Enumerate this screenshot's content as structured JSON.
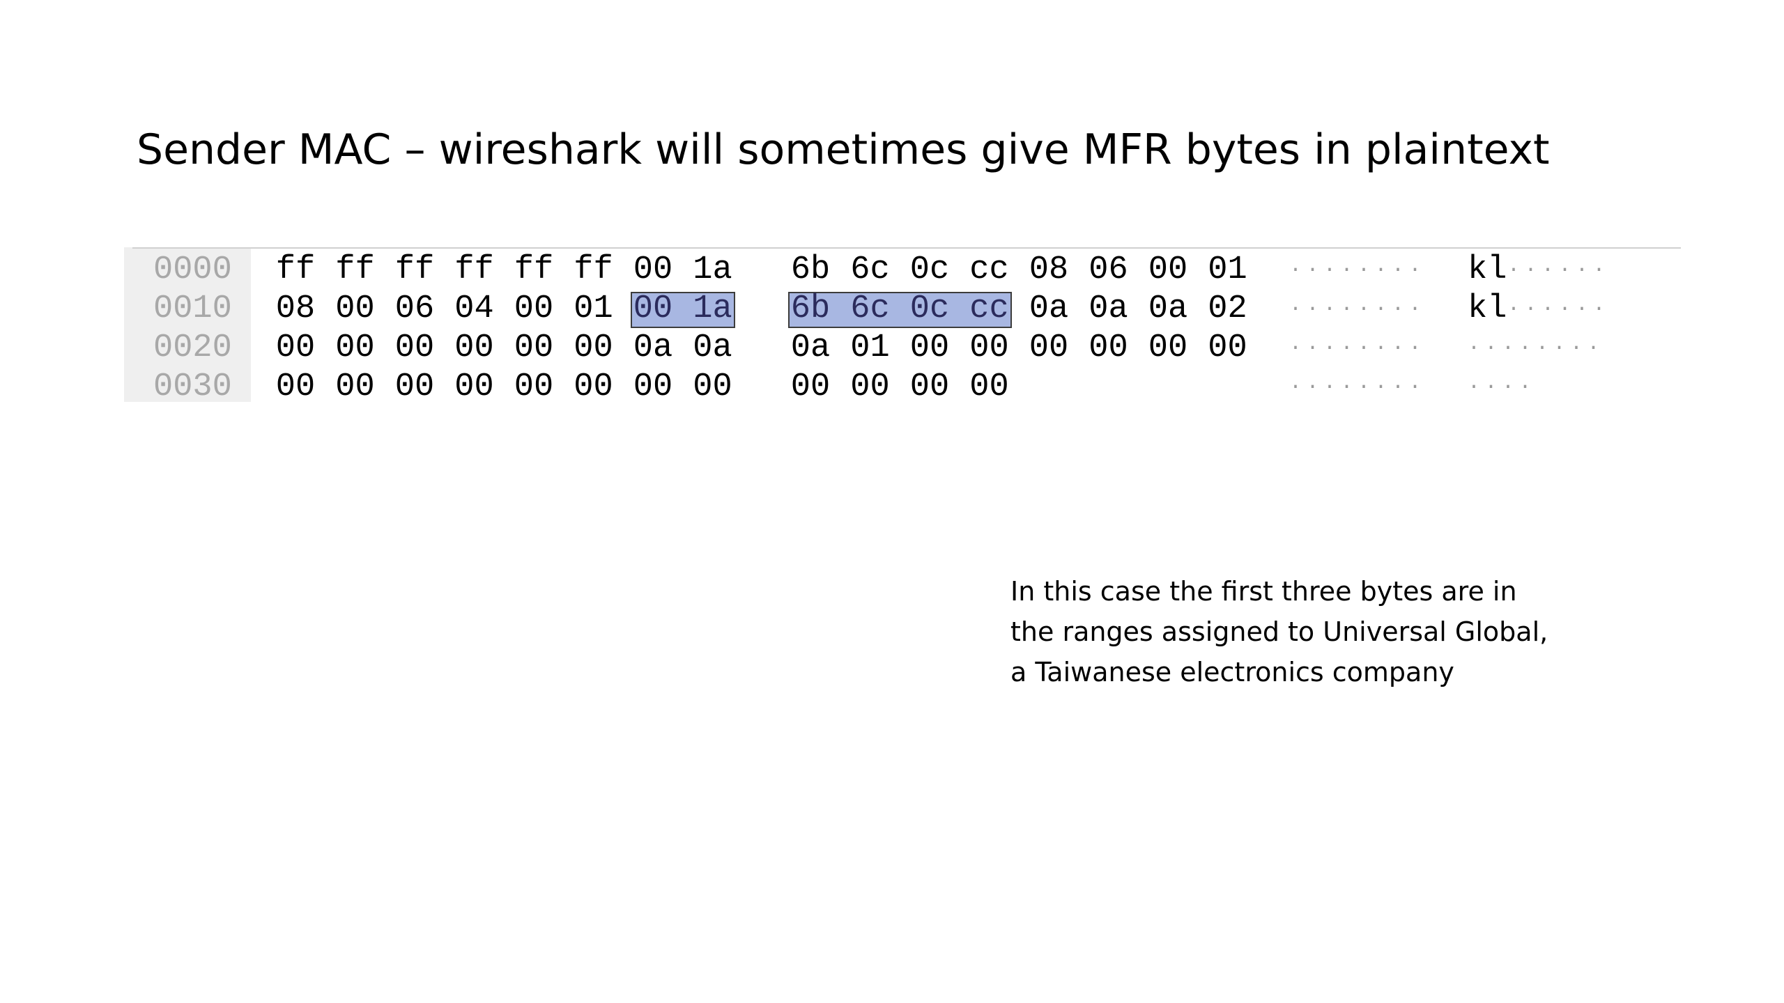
{
  "slide": {
    "title": "Sender MAC – wireshark will sometimes give MFR bytes in plaintext",
    "note": "In this case the first three bytes are in the ranges assigned to Universal Global, a Taiwanese electronics company"
  },
  "hex_dump": {
    "rows": [
      {
        "offset": "0000",
        "bytes": [
          "ff",
          "ff",
          "ff",
          "ff",
          "ff",
          "ff",
          "00",
          "1a",
          "6b",
          "6c",
          "0c",
          "cc",
          "08",
          "06",
          "00",
          "01"
        ],
        "ascii_a": "········",
        "ascii_b_text": "kl",
        "ascii_b_dots": "······"
      },
      {
        "offset": "0010",
        "bytes": [
          "08",
          "00",
          "06",
          "04",
          "00",
          "01",
          "00",
          "1a",
          "6b",
          "6c",
          "0c",
          "cc",
          "0a",
          "0a",
          "0a",
          "02"
        ],
        "ascii_a": "········",
        "ascii_b_text": "kl",
        "ascii_b_dots": "······"
      },
      {
        "offset": "0020",
        "bytes": [
          "00",
          "00",
          "00",
          "00",
          "00",
          "00",
          "0a",
          "0a",
          "0a",
          "01",
          "00",
          "00",
          "00",
          "00",
          "00",
          "00"
        ],
        "ascii_a": "········",
        "ascii_b_text": "",
        "ascii_b_dots": "········"
      },
      {
        "offset": "0030",
        "bytes": [
          "00",
          "00",
          "00",
          "00",
          "00",
          "00",
          "00",
          "00",
          "00",
          "00",
          "00",
          "00"
        ],
        "ascii_a": "········",
        "ascii_b_text": "",
        "ascii_b_dots": "····"
      }
    ],
    "selected": {
      "row": 1,
      "byte_indices": [
        6,
        7,
        8,
        9,
        10,
        11
      ]
    },
    "colors": {
      "highlight": "#a8b7e2",
      "offset_text": "#a8a8a8",
      "gutter": "#efefef"
    }
  }
}
